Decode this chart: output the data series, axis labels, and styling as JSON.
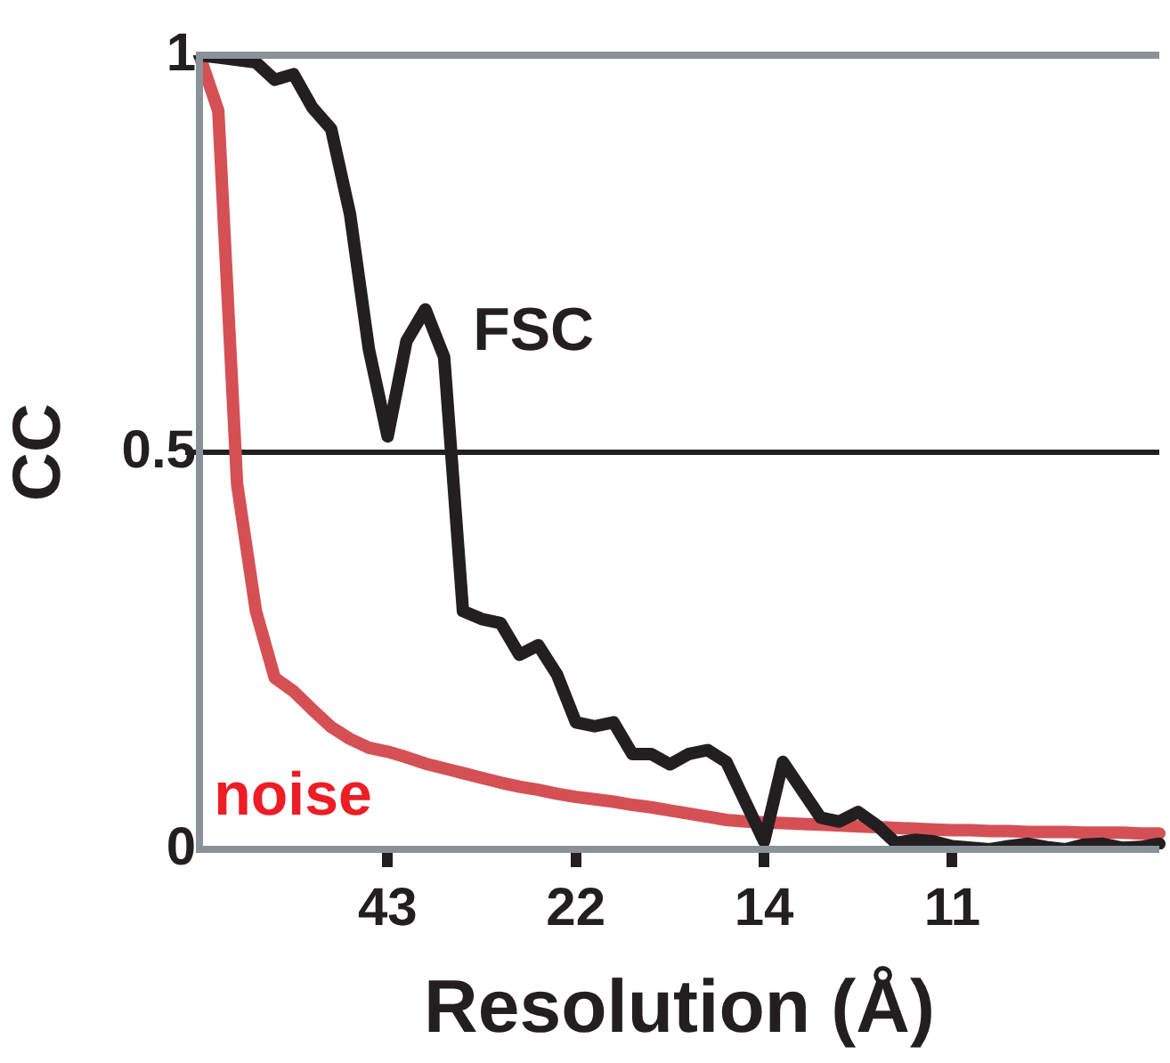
{
  "chart_data": {
    "type": "line",
    "xlabel": "Resolution (Å)",
    "ylabel": "CC",
    "categories": [
      null,
      null,
      null,
      null,
      null,
      null,
      null,
      null,
      null,
      null,
      "43",
      null,
      null,
      null,
      null,
      null,
      null,
      null,
      null,
      null,
      "22",
      null,
      null,
      null,
      null,
      null,
      null,
      null,
      null,
      null,
      "14",
      null,
      null,
      null,
      null,
      null,
      null,
      null,
      null,
      null,
      "11",
      null,
      null,
      null,
      null,
      null,
      null,
      null,
      null,
      null,
      null,
      null
    ],
    "ylim": [
      0,
      1
    ],
    "yticks": [
      {
        "value": 0,
        "label": "0"
      },
      {
        "value": 0.5,
        "label": "0.5"
      },
      {
        "value": 1,
        "label": "1"
      }
    ],
    "grid": false,
    "legend": false,
    "marker": "none",
    "line_style": "solid",
    "ref_lines": [
      {
        "axis": "y",
        "value": 0.5,
        "color": "#231f20"
      }
    ],
    "series": [
      {
        "name": "FSC",
        "color": "#231f20",
        "values": [
          1.0,
          0.997,
          0.994,
          0.991,
          0.969,
          0.976,
          0.934,
          0.907,
          0.8,
          0.63,
          0.52,
          0.64,
          0.68,
          0.62,
          0.3,
          0.29,
          0.285,
          0.245,
          0.257,
          0.22,
          0.16,
          0.155,
          0.16,
          0.12,
          0.12,
          0.107,
          0.12,
          0.125,
          0.11,
          0.06,
          0.01,
          0.11,
          0.075,
          0.04,
          0.035,
          0.047,
          0.03,
          0.008,
          0.012,
          0.01,
          0.004,
          0.002,
          0.0,
          0.004,
          0.007,
          0.003,
          0.0,
          0.006,
          0.007,
          0.002,
          0.003,
          0.007
        ]
      },
      {
        "name": "noise",
        "color": "#d55055",
        "values": [
          1.0,
          0.93,
          0.46,
          0.3,
          0.216,
          0.199,
          0.176,
          0.154,
          0.139,
          0.128,
          0.123,
          0.116,
          0.108,
          0.102,
          0.096,
          0.09,
          0.084,
          0.079,
          0.075,
          0.07,
          0.066,
          0.063,
          0.06,
          0.056,
          0.053,
          0.049,
          0.045,
          0.041,
          0.037,
          0.035,
          0.034,
          0.033,
          0.032,
          0.031,
          0.03,
          0.029,
          0.028,
          0.027,
          0.026,
          0.025,
          0.024,
          0.024,
          0.023,
          0.023,
          0.022,
          0.022,
          0.022,
          0.021,
          0.021,
          0.021,
          0.02,
          0.02
        ]
      }
    ]
  }
}
